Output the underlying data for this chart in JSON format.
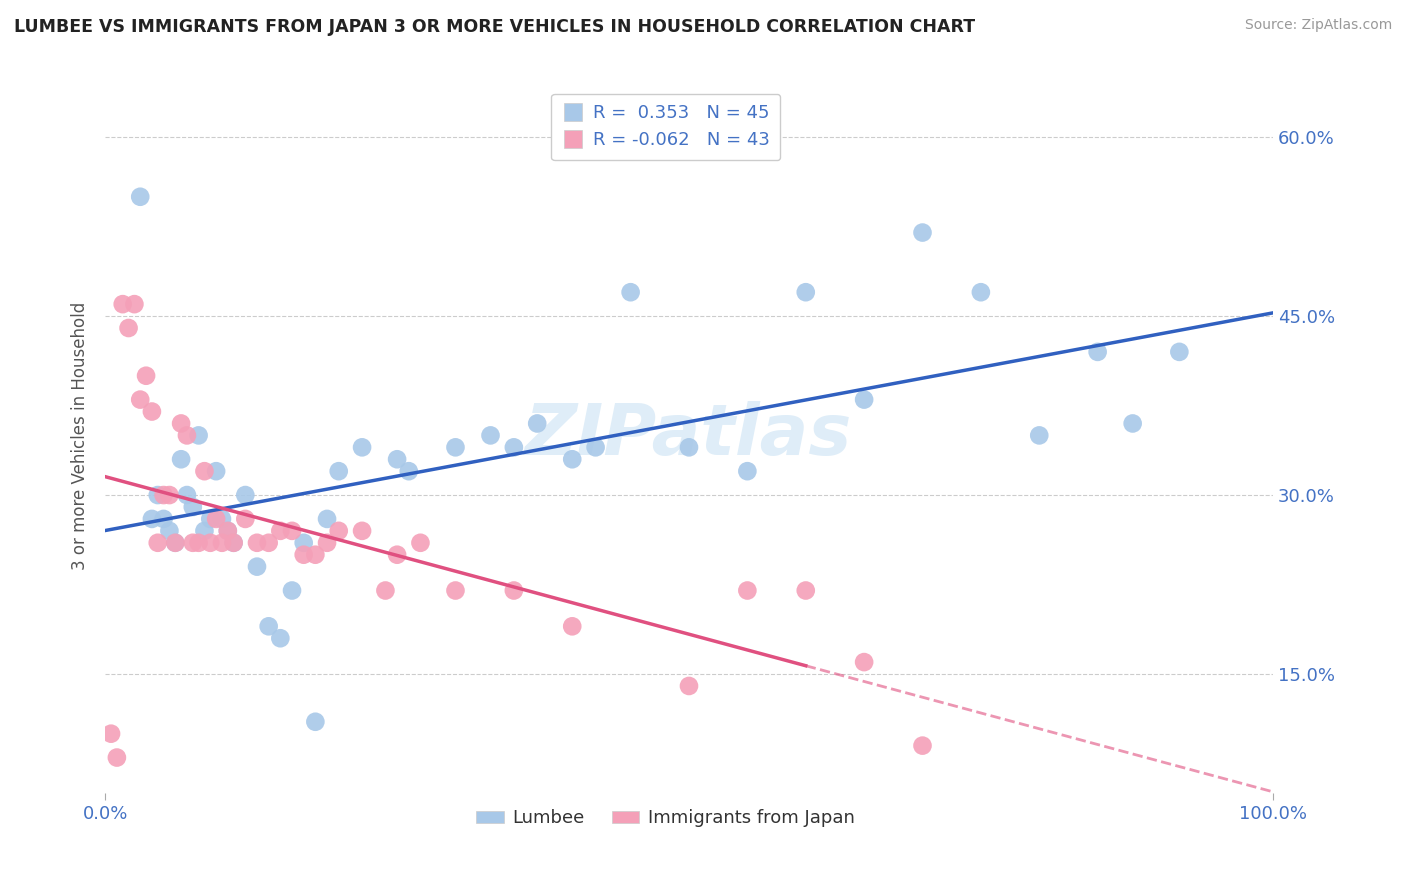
{
  "title": "LUMBEE VS IMMIGRANTS FROM JAPAN 3 OR MORE VEHICLES IN HOUSEHOLD CORRELATION CHART",
  "source": "Source: ZipAtlas.com",
  "ylabel": "3 or more Vehicles in Household",
  "xlim": [
    0,
    100
  ],
  "ylim": [
    5,
    65
  ],
  "ytick_vals": [
    15.0,
    30.0,
    45.0,
    60.0
  ],
  "ytick_labels": [
    "15.0%",
    "30.0%",
    "45.0%",
    "60.0%"
  ],
  "lumbee_R": 0.353,
  "lumbee_N": 45,
  "japan_R": -0.062,
  "japan_N": 43,
  "lumbee_color": "#a8c8e8",
  "japan_color": "#f4a0b8",
  "lumbee_line_color": "#3060c0",
  "japan_line_color": "#e05080",
  "background_color": "#ffffff",
  "grid_color": "#cccccc",
  "watermark": "ZIPatlas",
  "legend_label_1": "Lumbee",
  "legend_label_2": "Immigrants from Japan",
  "lumbee_x": [
    3.0,
    4.0,
    4.5,
    5.0,
    5.5,
    6.0,
    6.5,
    7.0,
    7.5,
    8.0,
    8.5,
    9.0,
    9.5,
    10.0,
    10.5,
    11.0,
    12.0,
    13.0,
    14.0,
    15.0,
    16.0,
    17.0,
    18.0,
    19.0,
    20.0,
    22.0,
    25.0,
    26.0,
    30.0,
    33.0,
    35.0,
    37.0,
    40.0,
    42.0,
    45.0,
    50.0,
    55.0,
    60.0,
    65.0,
    70.0,
    75.0,
    80.0,
    85.0,
    88.0,
    92.0
  ],
  "lumbee_y": [
    55.0,
    28.0,
    30.0,
    28.0,
    27.0,
    26.0,
    33.0,
    30.0,
    29.0,
    35.0,
    27.0,
    28.0,
    32.0,
    28.0,
    27.0,
    26.0,
    30.0,
    24.0,
    19.0,
    18.0,
    22.0,
    26.0,
    11.0,
    28.0,
    32.0,
    34.0,
    33.0,
    32.0,
    34.0,
    35.0,
    34.0,
    36.0,
    33.0,
    34.0,
    47.0,
    34.0,
    32.0,
    47.0,
    38.0,
    52.0,
    47.0,
    35.0,
    42.0,
    36.0,
    42.0
  ],
  "japan_x": [
    0.5,
    1.0,
    1.5,
    2.0,
    2.5,
    3.0,
    3.5,
    4.0,
    4.5,
    5.0,
    5.5,
    6.0,
    6.5,
    7.0,
    7.5,
    8.0,
    8.5,
    9.0,
    9.5,
    10.0,
    10.5,
    11.0,
    12.0,
    13.0,
    14.0,
    15.0,
    16.0,
    17.0,
    18.0,
    19.0,
    20.0,
    22.0,
    24.0,
    25.0,
    27.0,
    30.0,
    35.0,
    40.0,
    50.0,
    55.0,
    60.0,
    65.0,
    70.0
  ],
  "japan_y": [
    10.0,
    8.0,
    46.0,
    44.0,
    46.0,
    38.0,
    40.0,
    37.0,
    26.0,
    30.0,
    30.0,
    26.0,
    36.0,
    35.0,
    26.0,
    26.0,
    32.0,
    26.0,
    28.0,
    26.0,
    27.0,
    26.0,
    28.0,
    26.0,
    26.0,
    27.0,
    27.0,
    25.0,
    25.0,
    26.0,
    27.0,
    27.0,
    22.0,
    25.0,
    26.0,
    22.0,
    22.0,
    19.0,
    14.0,
    22.0,
    22.0,
    16.0,
    9.0
  ],
  "japan_solid_end_x": 60.0
}
